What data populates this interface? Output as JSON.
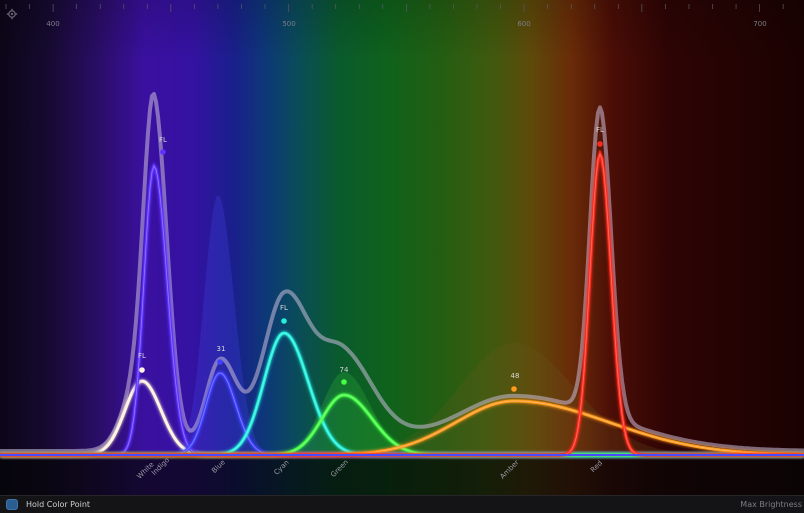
{
  "spectrum": {
    "wavelength_ticks": [
      "400",
      "500",
      "600",
      "700"
    ],
    "channels": [
      {
        "name": "White",
        "level": "FL",
        "color": "#fff2dc"
      },
      {
        "name": "Indigo",
        "level": "FL",
        "color": "#5c32ff"
      },
      {
        "name": "Blue",
        "level": "31",
        "color": "#4040ff"
      },
      {
        "name": "Cyan",
        "level": "FL",
        "color": "#22f0dc"
      },
      {
        "name": "Green",
        "level": "74",
        "color": "#44ff44"
      },
      {
        "name": "Amber",
        "level": "48",
        "color": "#ff9a1a"
      },
      {
        "name": "Red",
        "level": "FL",
        "color": "#ff2a1e"
      }
    ]
  },
  "footer": {
    "hold_color_point": "Hold Color Point",
    "max_brightness": "Max Brightness"
  }
}
